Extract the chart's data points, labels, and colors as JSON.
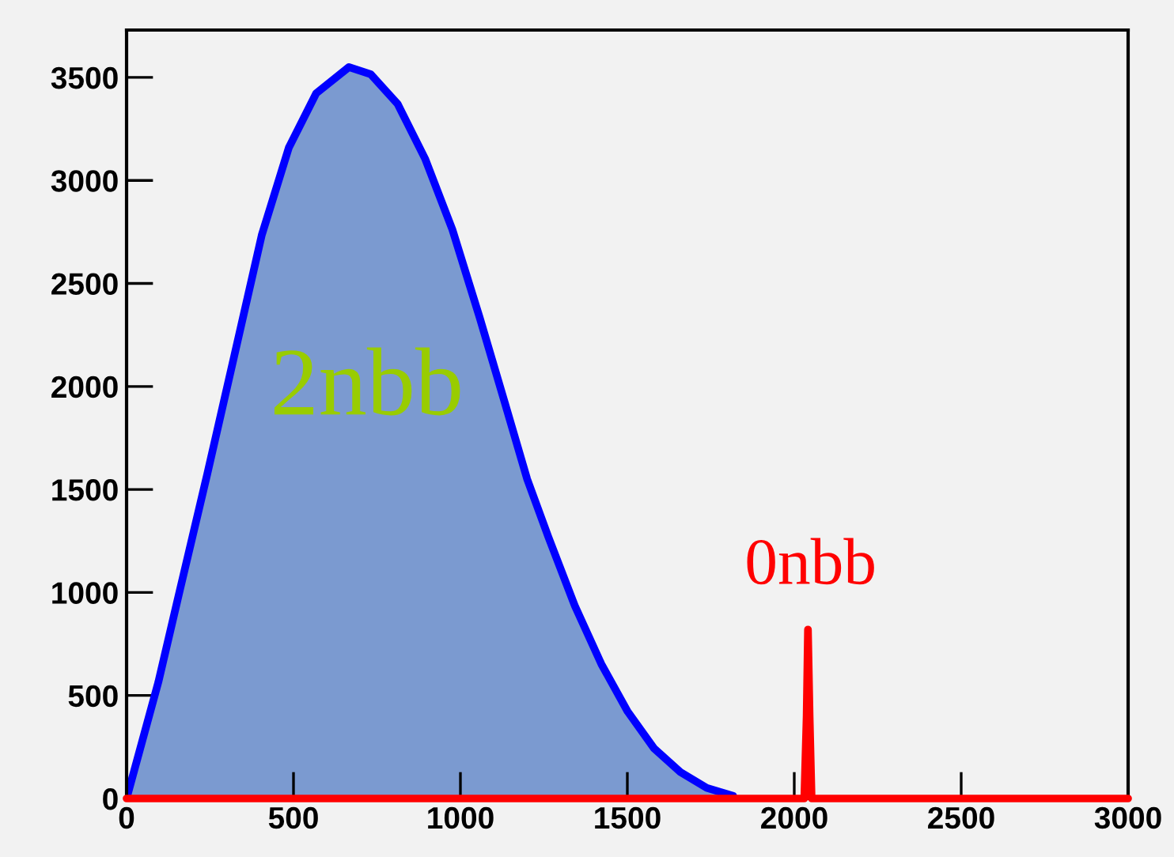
{
  "chart_data": {
    "type": "line",
    "xlim": [
      0,
      3000
    ],
    "xticks": [
      0,
      500,
      1000,
      1500,
      2000,
      2500,
      3000
    ],
    "ylim": [
      0,
      3730
    ],
    "yticks": [
      0,
      500,
      1000,
      1500,
      2000,
      2500,
      3000,
      3500
    ],
    "grid": false,
    "legend": false,
    "marker": "none",
    "line_style": "solid",
    "series": [
      {
        "type": "area",
        "color": "#7b9ad0",
        "x": [
          0,
          95,
          160,
          241,
          323,
          405,
          486,
          568,
          666,
          731,
          812,
          894,
          976,
          1057,
          1139,
          1200,
          1264,
          1343,
          1422,
          1501,
          1580,
          1659,
          1738,
          1817
        ],
        "values": [
          0,
          564,
          1014,
          1570,
          2152,
          2735,
          3159,
          3423,
          3550,
          3516,
          3371,
          3106,
          2761,
          2338,
          1888,
          1550,
          1267,
          934,
          653,
          422,
          243,
          128,
          51,
          13
        ]
      },
      {
        "color": "#ff0000",
        "x": [
          0,
          2030,
          2037,
          2041,
          2046,
          2052,
          3000
        ],
        "values": [
          0,
          0,
          400,
          820,
          400,
          0,
          0
        ]
      }
    ],
    "annotations": [
      "2nbb",
      "0nbb"
    ]
  }
}
